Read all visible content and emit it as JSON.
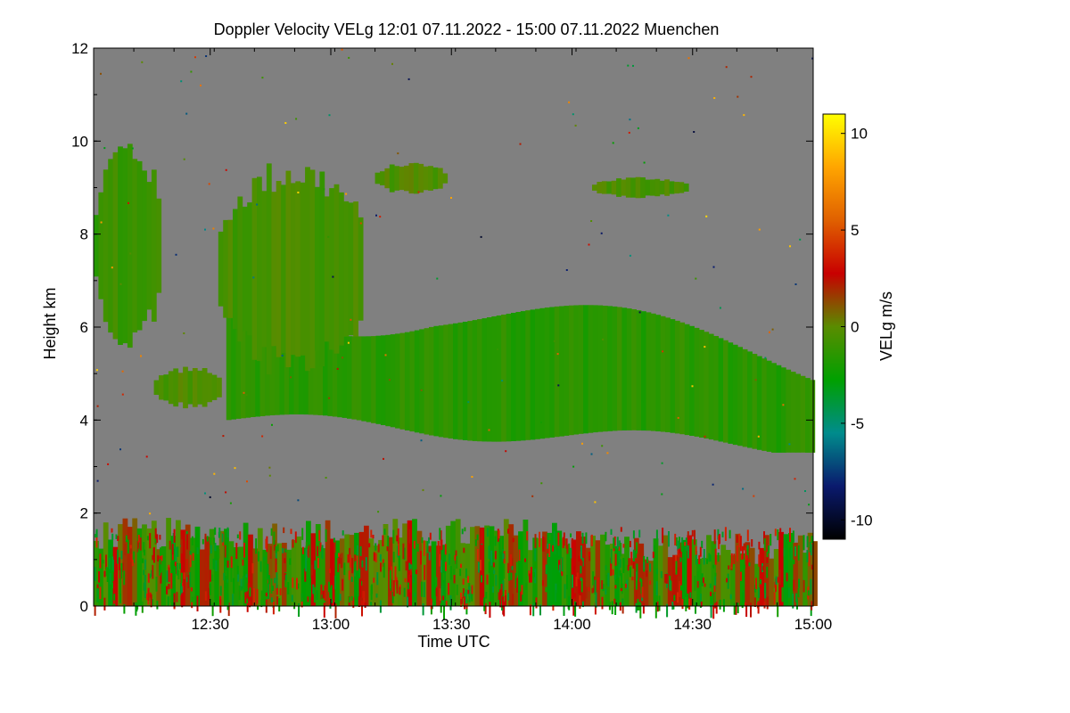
{
  "chart_data": {
    "type": "heatmap",
    "title": "Doppler Velocity VELg   12:01 07.11.2022 - 15:00 07.11.2022 Muenchen",
    "xlabel": "Time UTC",
    "ylabel": "Height km",
    "x_range_minutes": [
      721,
      900
    ],
    "x_ticks": [
      {
        "minute": 750,
        "label": "12:30"
      },
      {
        "minute": 780,
        "label": "13:00"
      },
      {
        "minute": 810,
        "label": "13:30"
      },
      {
        "minute": 840,
        "label": "14:00"
      },
      {
        "minute": 870,
        "label": "14:30"
      },
      {
        "minute": 900,
        "label": "15:00"
      }
    ],
    "ylim": [
      0,
      12
    ],
    "y_ticks": [
      0,
      2,
      4,
      6,
      8,
      10,
      12
    ],
    "background_value": "no signal (gray)",
    "colorbar": {
      "label": "VELg m/s",
      "range": [
        -11,
        11
      ],
      "ticks": [
        -10,
        -5,
        0,
        5,
        10
      ],
      "colors": [
        "#000000",
        "#0a1a6e",
        "#008c8c",
        "#00a000",
        "#5a8c00",
        "#c80000",
        "#e06000",
        "#ffa500",
        "#ffff00"
      ]
    },
    "features": [
      {
        "name": "main cloud layer",
        "t": [
          754,
          900
        ],
        "h": [
          3.3,
          6.6
        ],
        "v": -1.5
      },
      {
        "name": "upper cirrus west",
        "t": [
          721,
          737
        ],
        "h": [
          5.7,
          9.8
        ],
        "v": -1.0
      },
      {
        "name": "upper cloud central",
        "t": [
          752,
          788
        ],
        "h": [
          5.2,
          9.3
        ],
        "v": -0.6
      },
      {
        "name": "thin cirrus 13:10",
        "t": [
          791,
          808
        ],
        "h": [
          8.9,
          9.5
        ],
        "v": -0.4
      },
      {
        "name": "thin cirrus 14:10",
        "t": [
          845,
          868
        ],
        "h": [
          8.8,
          9.2
        ],
        "v": -0.5
      },
      {
        "name": "mid streak 12:20",
        "t": [
          736,
          752
        ],
        "h": [
          4.3,
          5.1
        ],
        "v": -0.5
      },
      {
        "name": "boundary layer",
        "t": [
          721,
          900
        ],
        "h": [
          0,
          1.8
        ],
        "v": "mixed -3 to +3"
      }
    ]
  }
}
